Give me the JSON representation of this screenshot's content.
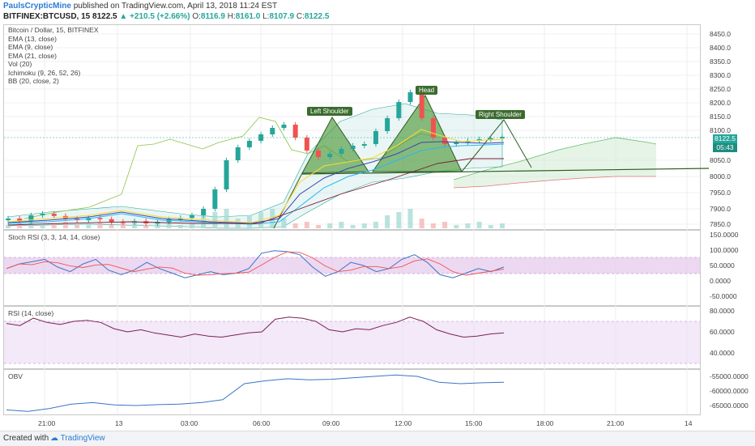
{
  "header": {
    "author": "PaulsCrypticMine",
    "published": "published on TradingView.com, April 13, 2018 11:24 EST",
    "symbol": "BITFINEX:BTCUSD, 15",
    "last": "8122.5",
    "change": "+210.5 (+2.66%)",
    "ohlc_o_label": "O:",
    "ohlc_o": "8116.9",
    "ohlc_h_label": "H:",
    "ohlc_h": "8161.0",
    "ohlc_l_label": "L:",
    "ohlc_l": "8107.9",
    "ohlc_c_label": "C:",
    "ohlc_c": "8122.5"
  },
  "main_legend": [
    "Bitcoin / Dollar, 15, BITFINEX",
    "EMA (13, close)",
    "EMA (9, close)",
    "EMA (21, close)",
    "Vol (20)",
    "Ichimoku (9, 26, 52, 26)",
    "BB (20, close, 2)"
  ],
  "price_axis": [
    "8450.0",
    "8400.0",
    "8350.0",
    "8300.0",
    "8250.0",
    "8200.0",
    "8150.0",
    "8100.0",
    "8050.0",
    "8000.0",
    "7950.0",
    "7900.0",
    "7850.0"
  ],
  "price_badge": "8122.5",
  "time_badge": "05:43",
  "patterns": {
    "left_shoulder": "Left Shoulder",
    "head": "Head",
    "right_shoulder": "Right Shoulder"
  },
  "stoch": {
    "label": "Stoch RSI (3, 3, 14, 14, close)",
    "axis": [
      "150.0000",
      "100.0000",
      "50.0000",
      "0.0000",
      "-50.0000"
    ]
  },
  "rsi": {
    "label": "RSI (14, close)",
    "axis": [
      "80.0000",
      "60.0000",
      "40.0000"
    ]
  },
  "obv": {
    "label": "OBV",
    "axis": [
      "-55000.0000",
      "-60000.0000",
      "-65000.0000"
    ]
  },
  "time_axis": [
    "21:00",
    "13",
    "03:00",
    "06:00",
    "09:00",
    "12:00",
    "15:00",
    "18:00",
    "21:00",
    "14"
  ],
  "footer": {
    "created": "Created with",
    "brand": "TradingView"
  },
  "colors": {
    "up": "#26a69a",
    "down": "#ef5350",
    "rsi": "#7b1f5a",
    "obv": "#3b74c4",
    "pattern_fill": "#4e9a3a"
  },
  "chart_data": {
    "type": "line",
    "title": "Bitcoin / Dollar, 15, BITFINEX",
    "x_ticks": [
      "21:00",
      "13",
      "03:00",
      "06:00",
      "09:00",
      "12:00",
      "15:00",
      "18:00",
      "21:00",
      "14"
    ],
    "series": [
      {
        "name": "Bitcoin / Dollar, 15, BITFINEX",
        "values": [
          7870,
          7862,
          7880,
          7885,
          7878,
          7870,
          7865,
          7872,
          7868,
          7860,
          7858,
          7862,
          7855,
          7860,
          7868,
          7872,
          7880,
          7900,
          7960,
          8050,
          8090,
          8110,
          8130,
          8150,
          8160,
          8120,
          8080,
          8060,
          8070,
          8085,
          8095,
          8100,
          8140,
          8180,
          8230,
          8260,
          8180,
          8120,
          8100,
          8105,
          8110,
          8115,
          8118,
          8122.5
        ]
      },
      {
        "name": "Stoch RSI (3, 3, 14, 14, close)",
        "values": [
          40,
          55,
          62,
          70,
          45,
          30,
          55,
          70,
          35,
          20,
          35,
          60,
          40,
          25,
          10,
          20,
          30,
          20,
          25,
          40,
          90,
          98,
          95,
          85,
          45,
          15,
          30,
          60,
          50,
          30,
          40,
          70,
          85,
          60,
          20,
          10,
          25,
          40,
          30,
          45
        ]
      },
      {
        "name": "RSI (14, close)",
        "values": [
          68,
          66,
          73,
          69,
          67,
          70,
          71,
          69,
          63,
          60,
          62,
          59,
          57,
          55,
          58,
          56,
          55,
          57,
          59,
          60,
          72,
          74,
          73,
          70,
          62,
          60,
          63,
          62,
          66,
          69,
          74,
          70,
          62,
          58,
          55,
          56,
          58,
          59
        ]
      },
      {
        "name": "OBV",
        "values": [
          -66500,
          -67000,
          -66000,
          -64500,
          -64000,
          -64800,
          -65000,
          -64700,
          -64500,
          -64000,
          -63000,
          -57500,
          -56500,
          -55800,
          -56200,
          -56000,
          -55500,
          -55000,
          -54500,
          -55000,
          -57000,
          -57500,
          -57200,
          -57000
        ]
      }
    ]
  }
}
